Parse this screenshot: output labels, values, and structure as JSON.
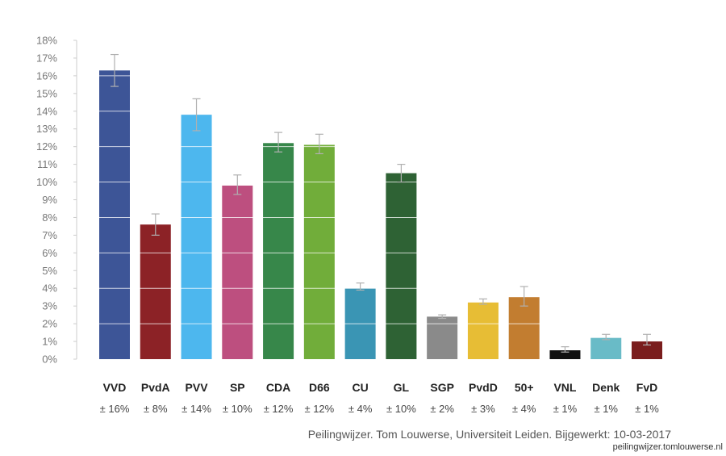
{
  "chart_data": {
    "type": "bar",
    "categories": [
      "VVD",
      "PvdA",
      "PVV",
      "SP",
      "CDA",
      "D66",
      "CU",
      "GL",
      "SGP",
      "PvdD",
      "50+",
      "VNL",
      "Denk",
      "FvD"
    ],
    "values": [
      16.3,
      7.6,
      13.8,
      9.8,
      12.2,
      12.1,
      4.0,
      10.5,
      2.4,
      3.2,
      3.5,
      0.5,
      1.2,
      1.0
    ],
    "error_low": [
      15.4,
      7.0,
      12.9,
      9.3,
      11.7,
      11.6,
      3.9,
      10.0,
      2.3,
      3.1,
      3.0,
      0.4,
      1.1,
      0.8
    ],
    "error_high": [
      17.2,
      8.2,
      14.7,
      10.4,
      12.8,
      12.7,
      4.3,
      11.0,
      2.5,
      3.4,
      4.1,
      0.7,
      1.4,
      1.4
    ],
    "colors": [
      "#3d5597",
      "#8c2226",
      "#4db7ee",
      "#bd4f7f",
      "#37874a",
      "#71ad3a",
      "#3a95b4",
      "#2e6234",
      "#8a8a8a",
      "#e7bd35",
      "#c27d30",
      "#111111",
      "#69bbc7",
      "#7a1d1d"
    ],
    "margins": [
      "± 16%",
      "± 8%",
      "± 14%",
      "± 10%",
      "± 12%",
      "± 12%",
      "± 4%",
      "± 10%",
      "± 2%",
      "± 3%",
      "± 4%",
      "± 1%",
      "± 1%",
      "± 1%"
    ],
    "yticks": [
      "0%",
      "1%",
      "2%",
      "3%",
      "4%",
      "5%",
      "6%",
      "7%",
      "8%",
      "9%",
      "10%",
      "11%",
      "12%",
      "13%",
      "14%",
      "15%",
      "16%",
      "17%",
      "18%"
    ],
    "ylim": [
      0,
      18
    ],
    "grid": true,
    "title": "",
    "xlabel": "",
    "ylabel": ""
  },
  "source_text": "Peilingwijzer. Tom Louwerse, Universiteit Leiden. Bijgewerkt: 10-03-2017",
  "watermark_text": "peilingwijzer.tomlouwerse.nl"
}
